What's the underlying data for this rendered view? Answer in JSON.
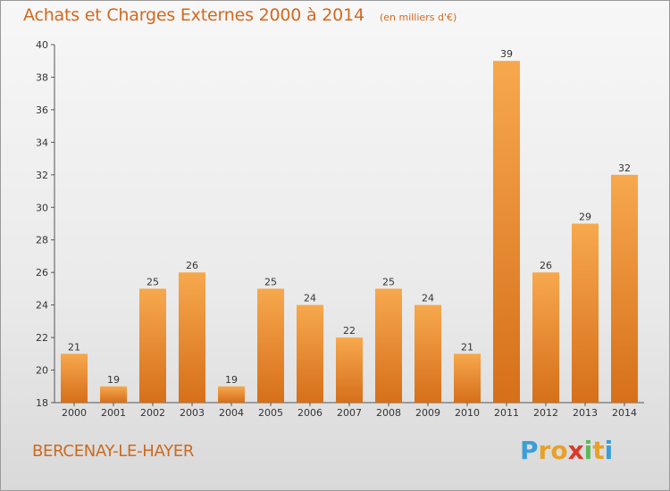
{
  "header": {
    "title": "Achats et Charges Externes 2000 à 2014",
    "subtitle": "(en milliers d'€)"
  },
  "footer": {
    "commune": "BERCENAY-LE-HAYER",
    "logo_letters": [
      "P",
      "r",
      "o",
      "x",
      "i",
      "t",
      "i"
    ],
    "logo_colors": [
      "#3a9fd8",
      "#e8a02a",
      "#e8a02a",
      "#d93a2a",
      "#5cb85c",
      "#e8a02a",
      "#3a9fd8"
    ]
  },
  "colors": {
    "bar_top": "#f7a84d",
    "bar_bottom": "#d66f1a",
    "title": "#d2691e",
    "axis": "#555555"
  },
  "chart_data": {
    "type": "bar",
    "title": "Achats et Charges Externes 2000 à 2014",
    "subtitle": "(en milliers d'€)",
    "categories": [
      "2000",
      "2001",
      "2002",
      "2003",
      "2004",
      "2005",
      "2006",
      "2007",
      "2008",
      "2009",
      "2010",
      "2011",
      "2012",
      "2013",
      "2014"
    ],
    "values": [
      21,
      19,
      25,
      26,
      19,
      25,
      24,
      22,
      25,
      24,
      21,
      39,
      26,
      29,
      32
    ],
    "data_labels": [
      "21",
      "19",
      "25",
      "26",
      "19",
      "25",
      "24",
      "22",
      "25",
      "24",
      "21",
      "39",
      "26",
      "29",
      "32"
    ],
    "ylim": [
      18,
      40
    ],
    "yticks": [
      18,
      20,
      22,
      24,
      26,
      28,
      30,
      32,
      34,
      36,
      38,
      40
    ],
    "xlabel": "",
    "ylabel": "",
    "grid": false,
    "legend": "none"
  }
}
